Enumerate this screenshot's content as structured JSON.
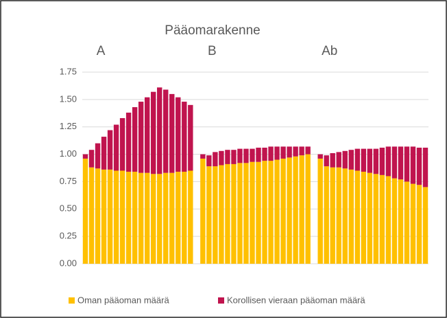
{
  "chart_data": {
    "type": "stacked_bar",
    "title": "Pääomarakenne",
    "annotations": [
      "A",
      "B",
      "Ab"
    ],
    "categories": [
      null,
      null,
      null,
      null,
      null,
      null,
      null,
      null,
      null,
      null,
      null,
      null,
      null,
      null,
      null,
      null,
      null,
      null,
      null,
      null,
      null,
      null,
      null,
      null,
      null,
      null,
      null,
      null,
      null,
      null,
      null,
      null,
      null,
      null,
      null,
      null,
      null,
      null,
      null,
      null,
      null,
      null,
      null,
      null,
      null,
      null,
      null,
      null,
      null,
      null,
      null,
      null,
      null,
      null,
      null,
      null
    ],
    "series": [
      {
        "name": "Oman pääoman määrä",
        "color": "#ffc000",
        "values": [
          0.96,
          0.88,
          0.87,
          0.86,
          0.86,
          0.85,
          0.85,
          0.84,
          0.84,
          0.83,
          0.83,
          0.82,
          0.82,
          0.83,
          0.83,
          0.84,
          0.84,
          0.85,
          null,
          0.96,
          0.89,
          0.89,
          0.9,
          0.91,
          0.91,
          0.92,
          0.92,
          0.93,
          0.93,
          0.94,
          0.94,
          0.95,
          0.96,
          0.97,
          0.98,
          0.99,
          1.0,
          null,
          0.96,
          0.89,
          0.88,
          0.88,
          0.87,
          0.86,
          0.85,
          0.84,
          0.83,
          0.82,
          0.81,
          0.8,
          0.78,
          0.77,
          0.75,
          0.73,
          0.72,
          0.7
        ]
      },
      {
        "name": "Korollisen vieraan pääoman määrä",
        "color": "#c0144e",
        "values": [
          0.04,
          0.16,
          0.23,
          0.3,
          0.36,
          0.42,
          0.48,
          0.54,
          0.59,
          0.65,
          0.69,
          0.75,
          0.79,
          0.76,
          0.72,
          0.68,
          0.64,
          0.6,
          null,
          0.04,
          0.1,
          0.13,
          0.13,
          0.13,
          0.13,
          0.13,
          0.13,
          0.12,
          0.13,
          0.12,
          0.13,
          0.12,
          0.11,
          0.1,
          0.09,
          0.08,
          0.07,
          null,
          0.04,
          0.1,
          0.13,
          0.14,
          0.16,
          0.18,
          0.2,
          0.21,
          0.22,
          0.23,
          0.25,
          0.27,
          0.29,
          0.3,
          0.32,
          0.34,
          0.34,
          0.36
        ]
      }
    ],
    "ylim": [
      0,
      1.75
    ],
    "yticks": [
      {
        "value": 0,
        "label": "0.00"
      },
      {
        "value": 0.25,
        "label": "0.25"
      },
      {
        "value": 0.5,
        "label": "0.50"
      },
      {
        "value": 0.75,
        "label": "0.75"
      },
      {
        "value": 1,
        "label": "1.00"
      },
      {
        "value": 1.25,
        "label": "1.25"
      },
      {
        "value": 1.5,
        "label": "1.50"
      },
      {
        "value": 1.75,
        "label": "1.75"
      }
    ],
    "grid": true,
    "legend": "bottom"
  }
}
